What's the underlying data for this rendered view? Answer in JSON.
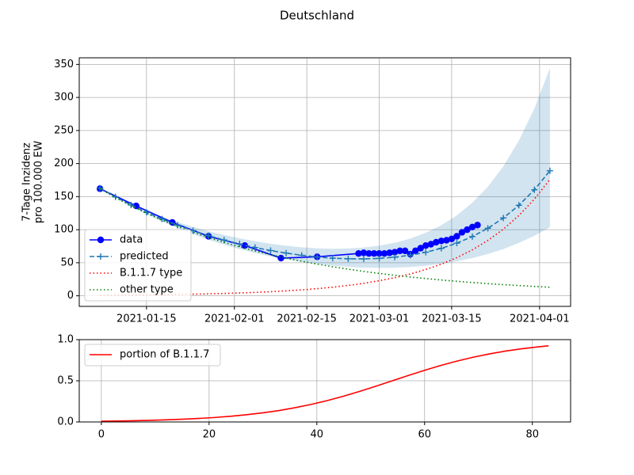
{
  "title": "Deutschland",
  "chart_data": [
    {
      "type": "line",
      "ylabel": [
        "7-Tage Inzidenz",
        "pro 100.000 EW"
      ],
      "x": [
        "2021-01-06",
        "2021-01-09",
        "2021-01-12",
        "2021-01-15",
        "2021-01-18",
        "2021-01-21",
        "2021-01-24",
        "2021-01-27",
        "2021-01-30",
        "2021-02-02",
        "2021-02-05",
        "2021-02-08",
        "2021-02-11",
        "2021-02-14",
        "2021-02-17",
        "2021-02-20",
        "2021-02-23",
        "2021-02-26",
        "2021-03-01",
        "2021-03-04",
        "2021-03-07",
        "2021-03-10",
        "2021-03-13",
        "2021-03-16",
        "2021-03-19",
        "2021-03-22",
        "2021-03-25",
        "2021-03-28",
        "2021-03-31",
        "2021-04-03"
      ],
      "band": {
        "color": "#1f77b4",
        "upper": [
          162.8,
          150.1,
          138.8,
          128.7,
          119.7,
          111.6,
          104.2,
          97.7,
          92.0,
          87.0,
          82.5,
          78.7,
          75.8,
          73.4,
          71.8,
          71.1,
          71.6,
          73.0,
          75.8,
          80.2,
          86.6,
          95.4,
          106.8,
          121.6,
          140.8,
          165.0,
          195.9,
          234.7,
          283.3,
          344.5
        ],
        "lower": [
          162.8,
          148.9,
          135.8,
          123.7,
          112.6,
          102.4,
          93.1,
          84.7,
          77.3,
          70.6,
          64.6,
          59.5,
          55.0,
          51.2,
          48.0,
          45.5,
          43.8,
          42.6,
          42.2,
          42.5,
          43.5,
          45.5,
          48.3,
          52.1,
          57.0,
          63.2,
          70.7,
          79.9,
          90.8,
          103.8
        ]
      },
      "series": [
        {
          "name": "data",
          "color": "#0000ff",
          "style": "solid",
          "marker": "o",
          "x": [
            "2021-01-06",
            "2021-01-13",
            "2021-01-20",
            "2021-01-27",
            "2021-02-03",
            "2021-02-10",
            "2021-02-17",
            "2021-02-25",
            "2021-02-26",
            "2021-02-27",
            "2021-02-28",
            "2021-03-01",
            "2021-03-02",
            "2021-03-03",
            "2021-03-04",
            "2021-03-05",
            "2021-03-06",
            "2021-03-07",
            "2021-03-08",
            "2021-03-09",
            "2021-03-10",
            "2021-03-11",
            "2021-03-12",
            "2021-03-13",
            "2021-03-14",
            "2021-03-15",
            "2021-03-16",
            "2021-03-17",
            "2021-03-18",
            "2021-03-19",
            "2021-03-20"
          ],
          "values": [
            162,
            136,
            111,
            90,
            76,
            57,
            59,
            64,
            65,
            64,
            64,
            64,
            64,
            65,
            66,
            68,
            68,
            63,
            68,
            72,
            76,
            78,
            81,
            83,
            84,
            86,
            90,
            96,
            100,
            104,
            107
          ]
        },
        {
          "name": "predicted",
          "color": "#1f77b4",
          "style": "dashed",
          "marker": "+",
          "values": [
            162.8,
            149.5,
            137.3,
            126.2,
            116.1,
            106.9,
            98.5,
            91.0,
            84.3,
            78.4,
            73.0,
            68.4,
            64.6,
            61.3,
            58.7,
            56.9,
            56.0,
            55.8,
            56.6,
            58.4,
            61.4,
            65.9,
            71.8,
            79.6,
            89.6,
            102.1,
            117.7,
            136.9,
            160.4,
            189.1
          ]
        },
        {
          "name": "B.1.1.7 type",
          "color": "#ff0000",
          "style": "dotted",
          "marker": null,
          "values": [
            0.8,
            0.96,
            1.16,
            1.4,
            1.68,
            2.03,
            2.44,
            2.94,
            3.54,
            4.27,
            5.14,
            6.19,
            7.45,
            8.98,
            10.8,
            13.0,
            15.7,
            18.9,
            22.8,
            27.4,
            33.0,
            39.8,
            47.9,
            57.7,
            69.5,
            83.7,
            100.8,
            121.4,
            146.2,
            176.1
          ]
        },
        {
          "name": "other type",
          "color": "#008000",
          "style": "dotted",
          "marker": null,
          "values": [
            162,
            148.5,
            136.1,
            124.8,
            114.4,
            104.9,
            96.1,
            88.1,
            80.8,
            74.1,
            67.9,
            62.2,
            57.1,
            52.3,
            47.9,
            43.9,
            40.3,
            36.9,
            33.8,
            31.0,
            28.4,
            26.1,
            23.9,
            21.9,
            20.1,
            18.4,
            16.9,
            15.5,
            14.2,
            13.0
          ]
        }
      ],
      "xlim": [
        "2021-01-02",
        "2021-04-07"
      ],
      "xticks": [
        "2021-01-15",
        "2021-02-01",
        "2021-02-15",
        "2021-03-01",
        "2021-03-15",
        "2021-04-01"
      ],
      "ylim": [
        -16,
        360
      ],
      "yticks": [
        0,
        50,
        100,
        150,
        200,
        250,
        300,
        350
      ],
      "grid": true,
      "legend": "lower left"
    },
    {
      "type": "line",
      "x": [
        0,
        3,
        6,
        9,
        12,
        15,
        18,
        21,
        24,
        27,
        30,
        33,
        36,
        39,
        42,
        45,
        48,
        51,
        54,
        57,
        60,
        63,
        66,
        69,
        72,
        75,
        78,
        81,
        83
      ],
      "series": [
        {
          "name": "portion of B.1.1.7",
          "color": "#ff0000",
          "style": "solid",
          "marker": null,
          "values": [
            0.0092,
            0.0119,
            0.0153,
            0.0198,
            0.0256,
            0.0329,
            0.0423,
            0.0542,
            0.0691,
            0.0879,
            0.111,
            0.139,
            0.174,
            0.214,
            0.261,
            0.314,
            0.373,
            0.435,
            0.5,
            0.565,
            0.627,
            0.686,
            0.739,
            0.786,
            0.826,
            0.861,
            0.889,
            0.912,
            0.925
          ]
        }
      ],
      "xlim": [
        -4.1,
        87.1
      ],
      "xticks": [
        0,
        20,
        40,
        60,
        80
      ],
      "ylim": [
        0,
        1
      ],
      "yticks": [
        {
          "value": 0,
          "label": "0.0"
        },
        {
          "value": 0.5,
          "label": "0.5"
        },
        {
          "value": 1,
          "label": "1.0"
        }
      ],
      "grid": true,
      "legend": "upper left"
    }
  ]
}
